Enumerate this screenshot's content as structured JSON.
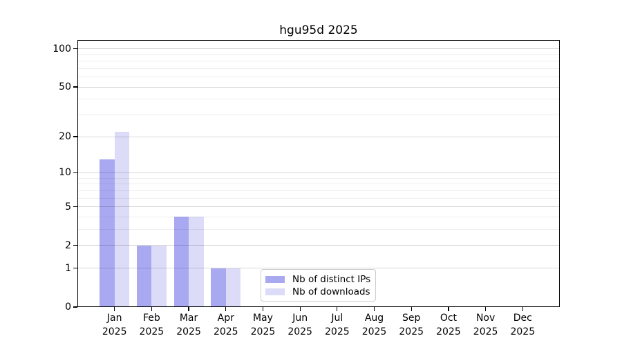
{
  "title": "hgu95d 2025",
  "chart_data": {
    "type": "bar",
    "title": "hgu95d 2025",
    "categories": [
      "Jan",
      "Feb",
      "Mar",
      "Apr",
      "May",
      "Jun",
      "Jul",
      "Aug",
      "Sep",
      "Oct",
      "Nov",
      "Dec"
    ],
    "category_year": "2025",
    "series": [
      {
        "name": "Nb of distinct IPs",
        "color": "#a9a9f2",
        "values": [
          13,
          2,
          4,
          1,
          0,
          0,
          0,
          0,
          0,
          0,
          0,
          0
        ]
      },
      {
        "name": "Nb of downloads",
        "color": "#dcdcf8",
        "values": [
          22,
          2,
          4,
          1,
          0,
          0,
          0,
          0,
          0,
          0,
          0,
          0
        ]
      }
    ],
    "y_axis": {
      "scale": "log1p",
      "major_ticks": [
        0,
        1,
        2,
        5,
        10,
        20,
        50,
        100
      ],
      "minor_ticks": [
        3,
        4,
        6,
        7,
        8,
        9,
        30,
        40,
        60,
        70,
        80,
        90
      ],
      "display_max": 117
    },
    "x_axis": {
      "tick_label_lines": [
        "month",
        "year"
      ]
    },
    "legend_position": "lower center",
    "grid": "on"
  },
  "legend": {
    "items": [
      {
        "label": "Nb of distinct IPs"
      },
      {
        "label": "Nb of downloads"
      }
    ]
  },
  "colors": {
    "bar_ips": "#a9a9f2",
    "bar_downloads": "#dcdcf8",
    "grid_major": "rgba(0,0,0,0.16)",
    "grid_minor": "rgba(0,0,0,0.07)",
    "axis": "#000000",
    "legend_border": "#cccccc",
    "background": "#ffffff"
  }
}
